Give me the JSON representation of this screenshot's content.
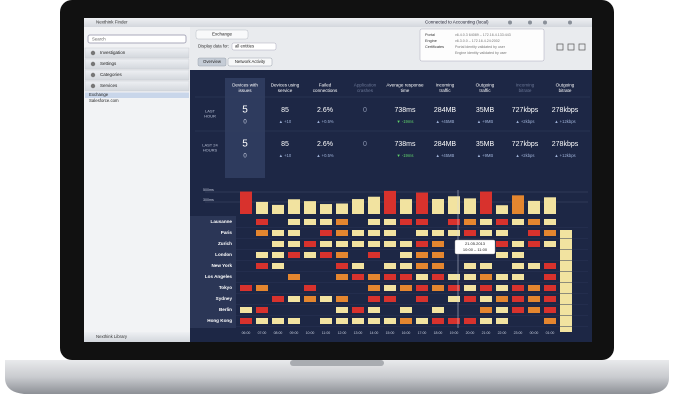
{
  "window": {
    "title": "Nexthink Finder",
    "status": "Connected to Accounting (local)"
  },
  "sidebar": {
    "search": "Search",
    "nav": [
      "Investigation",
      "Settings",
      "Categories",
      "Services"
    ],
    "items": [
      "Exchange",
      "Salesforce.com"
    ],
    "footer": "Nexthink Library"
  },
  "tab": "Exchange",
  "popup": {
    "rows": [
      [
        "Portal",
        "v6.4.0.3 64089 – 172.16.4.133:443"
      ],
      [
        "Engine",
        "v6.3.0.0 – 172.16.4.24:2002"
      ],
      [
        "Certificates",
        "Portal identity validated by user"
      ],
      [
        "",
        "Engine identity validated by user"
      ]
    ]
  },
  "filter": {
    "label": "Display data for:",
    "value": "all entities"
  },
  "buttons": [
    "Overview",
    "Network Activity"
  ],
  "metrics": {
    "headers": [
      "Devices with issues",
      "Devices using service",
      "Failed connections",
      "Application crashes",
      "Average response time",
      "Incoming traffic",
      "Outgoing traffic",
      "Incoming bitrate",
      "Outgoing bitrate"
    ],
    "rows": [
      {
        "label": "LAST HOUR",
        "values": [
          "5",
          "85",
          "2.6%",
          "0",
          "738ms",
          "284MB",
          "35MB",
          "727kbps",
          "278kbps"
        ],
        "deltas": [
          "0",
          "▲ +10",
          "▲ +0.5%",
          "",
          "▼ -19ms",
          "▲ +45MB",
          "▲ +9MB",
          "▲ +2kbps",
          "▲ +12kbps"
        ]
      },
      {
        "label": "LAST 24 HOURS",
        "values": [
          "5",
          "85",
          "2.6%",
          "0",
          "738ms",
          "284MB",
          "35MB",
          "727kbps",
          "278kbps"
        ],
        "deltas": [
          "0",
          "▲ +10",
          "▲ +0.5%",
          "",
          "▼ -19ms",
          "▲ +45MB",
          "▲ +9MB",
          "▲ +2kbps",
          "▲ +12kbps"
        ]
      }
    ]
  },
  "heatmap": {
    "scale": [
      "500ms",
      "300ms"
    ],
    "cities": [
      "Lausanne",
      "Paris",
      "Zurich",
      "London",
      "New York",
      "Los Angeles",
      "Tokyo",
      "Sydney",
      "Berlin",
      "Hong Kong"
    ],
    "times": [
      "06:00",
      "07:00",
      "08:00",
      "09:00",
      "10:00",
      "11:00",
      "12:00",
      "13:00",
      "14:00",
      "15:00",
      "16:00",
      "17:00",
      "18:00",
      "19:00",
      "20:00",
      "21:00",
      "22:00",
      "23:00",
      "00:00",
      "01:00"
    ],
    "tooltip": [
      "21.05.2013",
      "10:00 – 11:00"
    ]
  }
}
